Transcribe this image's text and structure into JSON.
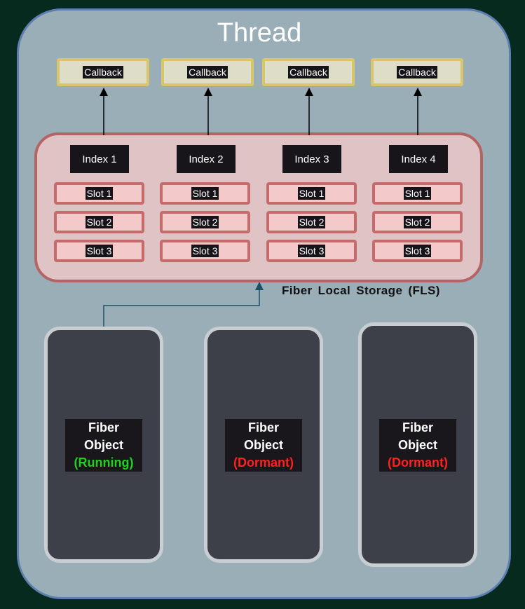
{
  "title": "Thread",
  "callbacks": [
    "Callback",
    "Callback",
    "Callback",
    "Callback"
  ],
  "fls": {
    "label": "Fiber Local Storage (FLS)",
    "indexes": [
      {
        "label": "Index 1",
        "slots": [
          "Slot 1",
          "Slot 2",
          "Slot 3"
        ]
      },
      {
        "label": "Index 2",
        "slots": [
          "Slot 1",
          "Slot 2",
          "Slot 3"
        ]
      },
      {
        "label": "Index 3",
        "slots": [
          "Slot 1",
          "Slot 2",
          "Slot 3"
        ]
      },
      {
        "label": "Index 4",
        "slots": [
          "Slot 1",
          "Slot 2",
          "Slot 3"
        ]
      }
    ]
  },
  "fibers": [
    {
      "line1": "Fiber",
      "line2": "Object",
      "state": "(Running)",
      "state_color": "#1fd11f"
    },
    {
      "line1": "Fiber",
      "line2": "Object",
      "state": "(Dormant)",
      "state_color": "#ff2020"
    },
    {
      "line1": "Fiber",
      "line2": "Object",
      "state": "(Dormant)",
      "state_color": "#ff2020"
    }
  ]
}
